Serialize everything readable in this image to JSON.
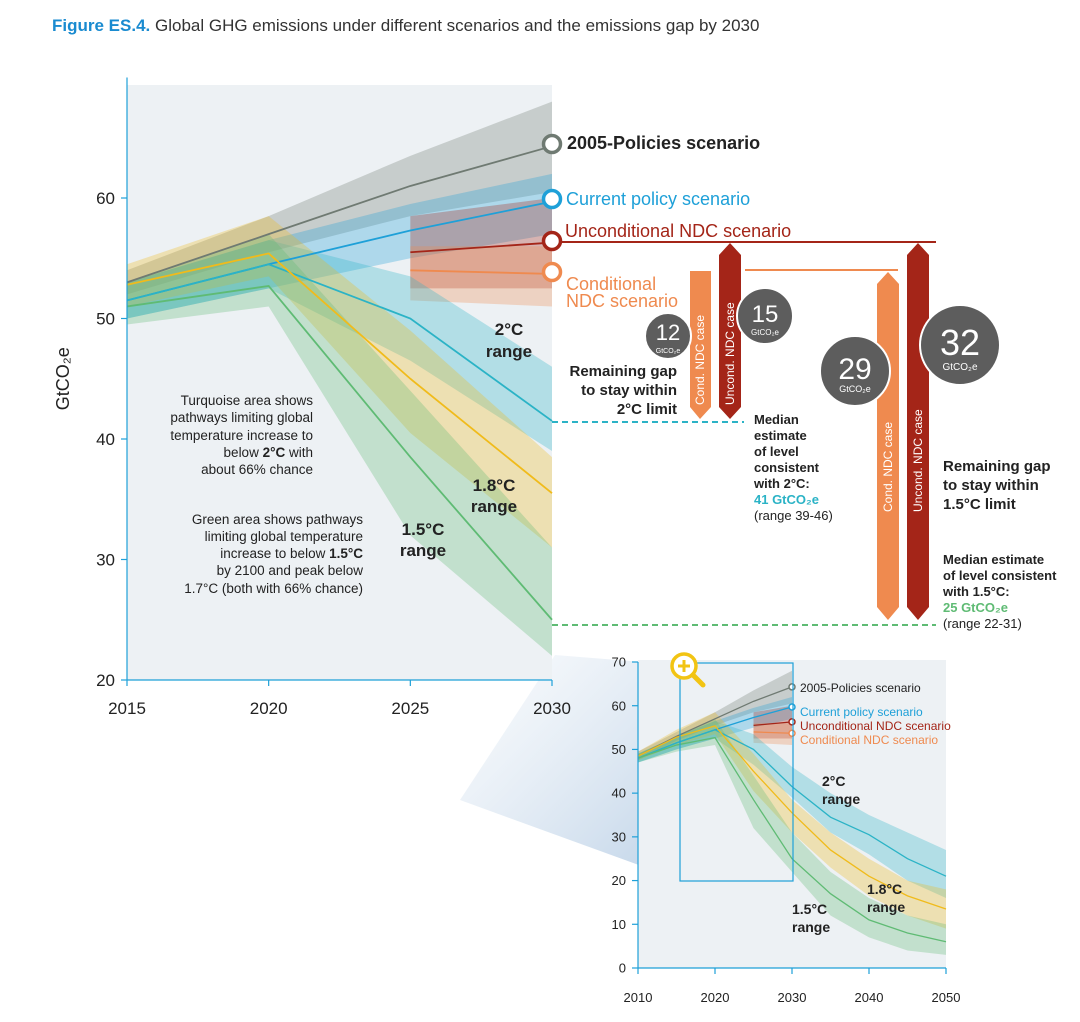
{
  "caption": {
    "label": "Figure ES.4.",
    "text": "Global GHG emissions under different scenarios and the emissions gap by 2030"
  },
  "colors": {
    "policies2005": "#6f7a72",
    "current": "#1ea0d8",
    "uncond": "#a42518",
    "cond": "#ef8a4f",
    "c2": "#2bb3c6",
    "c18": "#f0bb1b",
    "c15": "#5fbb74",
    "zoom": "#f2c413",
    "panel_bg": "#edf1f4"
  },
  "chart_data": [
    {
      "type": "line",
      "title": "",
      "ylabel": "GtCO₂e",
      "xlim": [
        2015,
        2030
      ],
      "ylim": [
        20,
        70
      ],
      "x_ticks": [
        "2015",
        "2020",
        "2025",
        "2030"
      ],
      "y_ticks": [
        "20",
        "30",
        "40",
        "50",
        "60"
      ],
      "series": [
        {
          "name": "2005-Policies scenario",
          "key": "policies2005",
          "x": [
            2015,
            2020,
            2025,
            2030
          ],
          "values": [
            53,
            57,
            61,
            64.3
          ],
          "band_upper": [
            54,
            58.5,
            63.5,
            68
          ],
          "band_lower": [
            52,
            55.5,
            58.5,
            60.5
          ]
        },
        {
          "name": "Current policy scenario",
          "key": "current",
          "x": [
            2015,
            2020,
            2025,
            2030
          ],
          "values": [
            51.5,
            54.5,
            57.3,
            59.7
          ],
          "band_upper": [
            53,
            56.5,
            59.5,
            62
          ],
          "band_lower": [
            50,
            52.5,
            55,
            57
          ]
        },
        {
          "name": "Unconditional NDC scenario",
          "key": "uncond",
          "x": [
            2025,
            2030
          ],
          "values": [
            55.5,
            56.3
          ],
          "band_upper": [
            58.5,
            60
          ],
          "band_lower": [
            52.5,
            52.5
          ]
        },
        {
          "name": "Conditional NDC scenario",
          "key": "cond",
          "x": [
            2025,
            2030
          ],
          "values": [
            54,
            53.7
          ],
          "band_upper": [
            56,
            56
          ],
          "band_lower": [
            51.5,
            51
          ]
        },
        {
          "name": "2°C range",
          "key": "c2",
          "x": [
            2015,
            2020,
            2025,
            2030
          ],
          "values": [
            51.5,
            54.5,
            50,
            41.5
          ],
          "band_upper": [
            53,
            56.5,
            53.5,
            46
          ],
          "band_lower": [
            50,
            52.5,
            46.5,
            39
          ]
        },
        {
          "name": "1.8°C range",
          "key": "c18",
          "x": [
            2015,
            2020,
            2025,
            2030
          ],
          "values": [
            52.8,
            55.4,
            45,
            35.5
          ],
          "band_upper": [
            54.5,
            58.5,
            49,
            38.5
          ],
          "band_lower": [
            51,
            53.5,
            40.5,
            31
          ]
        },
        {
          "name": "1.5°C range",
          "key": "c15",
          "x": [
            2015,
            2020,
            2025,
            2030
          ],
          "values": [
            51,
            52.7,
            38.5,
            25
          ],
          "band_upper": [
            53,
            57,
            44,
            31
          ],
          "band_lower": [
            49.5,
            51,
            32,
            22
          ]
        }
      ],
      "median_2c": 41,
      "median_15c": 25,
      "gaps": [
        {
          "case": "Cond. NDC case",
          "target": "2°C",
          "value": "12",
          "unit": "GtCO₂e"
        },
        {
          "case": "Uncond. NDC case",
          "target": "2°C",
          "value": "15",
          "unit": "GtCO₂e"
        },
        {
          "case": "Cond. NDC case",
          "target": "1.5°C",
          "value": "29",
          "unit": "GtCO₂e"
        },
        {
          "case": "Uncond. NDC case",
          "target": "1.5°C",
          "value": "32",
          "unit": "GtCO₂e"
        }
      ]
    },
    {
      "type": "line",
      "title": "",
      "xlim": [
        2010,
        2050
      ],
      "ylim": [
        0,
        70
      ],
      "x_ticks": [
        "2010",
        "2020",
        "2030",
        "2040",
        "2050"
      ],
      "y_ticks": [
        "0",
        "10",
        "20",
        "30",
        "40",
        "50",
        "60",
        "70"
      ],
      "zoom_region": {
        "x": [
          2015,
          2030
        ],
        "y": [
          20,
          70
        ]
      },
      "series": [
        {
          "name": "2005-Policies scenario",
          "key": "policies2005",
          "x": [
            2010,
            2015,
            2020,
            2025,
            2030
          ],
          "values": [
            48.5,
            53,
            57,
            61,
            64.3
          ],
          "band_upper": [
            49.5,
            54,
            58.5,
            63.5,
            68
          ],
          "band_lower": [
            47.5,
            52,
            55.5,
            58.5,
            60.5
          ]
        },
        {
          "name": "Current policy scenario",
          "key": "current",
          "x": [
            2010,
            2015,
            2020,
            2025,
            2030
          ],
          "values": [
            48,
            51.5,
            54.5,
            57.3,
            59.7
          ],
          "band_upper": [
            49,
            53,
            56.5,
            59.5,
            62
          ],
          "band_lower": [
            47,
            50,
            52.5,
            55,
            57
          ]
        },
        {
          "name": "Unconditional NDC scenario",
          "key": "uncond",
          "x": [
            2025,
            2030
          ],
          "values": [
            55.5,
            56.3
          ],
          "band_upper": [
            58.5,
            60
          ],
          "band_lower": [
            52.5,
            52.5
          ]
        },
        {
          "name": "Conditional NDC scenario",
          "key": "cond",
          "x": [
            2025,
            2030
          ],
          "values": [
            54,
            53.7
          ],
          "band_upper": [
            56,
            56
          ],
          "band_lower": [
            51.5,
            51
          ]
        },
        {
          "name": "2°C range",
          "key": "c2",
          "x": [
            2010,
            2015,
            2020,
            2025,
            2030,
            2035,
            2040,
            2045,
            2050
          ],
          "values": [
            48,
            51.5,
            54.5,
            50,
            41.5,
            34.5,
            30.5,
            25,
            21
          ],
          "band_upper": [
            49,
            53,
            56.5,
            53.5,
            46,
            40,
            35,
            31,
            27
          ],
          "band_lower": [
            47,
            50,
            52.5,
            46.5,
            39,
            31,
            26,
            20,
            16
          ]
        },
        {
          "name": "1.8°C range",
          "key": "c18",
          "x": [
            2010,
            2015,
            2020,
            2025,
            2030,
            2035,
            2040,
            2045,
            2050
          ],
          "values": [
            48.5,
            52.8,
            55.4,
            45,
            35.5,
            27,
            21,
            16.5,
            13.5
          ],
          "band_upper": [
            49.5,
            54.5,
            58.5,
            49,
            38.5,
            31,
            25,
            20,
            18
          ],
          "band_lower": [
            47.5,
            51,
            53.5,
            40.5,
            31,
            23,
            16.5,
            12,
            9
          ]
        },
        {
          "name": "1.5°C range",
          "key": "c15",
          "x": [
            2010,
            2015,
            2020,
            2025,
            2030,
            2035,
            2040,
            2045,
            2050
          ],
          "values": [
            48,
            51,
            52.7,
            38.5,
            25,
            17,
            11,
            8,
            6
          ],
          "band_upper": [
            49,
            53,
            57,
            44,
            31,
            22,
            16,
            12,
            10
          ],
          "band_lower": [
            47,
            49.5,
            51,
            32,
            22,
            12,
            7,
            4,
            3
          ]
        }
      ]
    }
  ],
  "labels": {
    "policies2005": "2005-Policies scenario",
    "current": "Current policy scenario",
    "uncond": "Unconditional NDC scenario",
    "cond_l1": "Conditional",
    "cond_l2": "NDC scenario",
    "c2_l1": "2°C",
    "c2_l2": "range",
    "c18_l1": "1.8°C",
    "c18_l2": "range",
    "c15_l1": "1.5°C",
    "c15_l2": "range",
    "cond_case": "Cond. NDC case",
    "uncond_case": "Uncond. NDC case",
    "gap12": "12",
    "gap15": "15",
    "gap29": "29",
    "gap32": "32",
    "unit": "GtCO₂e",
    "gap2_l1": "Remaining gap",
    "gap2_l2": "to stay within",
    "gap2_l3": "2°C limit",
    "gap15_l1": "Remaining gap",
    "gap15_l2": "to stay within",
    "gap15_l3": "1.5°C limit",
    "med2_l1": "Median",
    "med2_l2": "estimate",
    "med2_l3": "of level",
    "med2_l4": "consistent",
    "med2_l5": "with 2°C:",
    "med2_val": "41 GtCO₂e",
    "med2_range": "(range 39-46)",
    "med15_l1": "Median estimate",
    "med15_l2": "of level consistent",
    "med15_l3": "with 1.5°C:",
    "med15_val": "25 GtCO₂e",
    "med15_range": "(range 22-31)",
    "turq_l1": "Turquoise area shows",
    "turq_l2": "pathways limiting global",
    "turq_l3": "temperature increase to",
    "turq_l4a": "below ",
    "turq_l4b": "2°C",
    "turq_l4c": " with",
    "turq_l5": "about 66% chance",
    "green_l1": "Green area shows pathways",
    "green_l2": "limiting global temperature",
    "green_l3a": "increase to below ",
    "green_l3b": "1.5°C",
    "green_l4": "by 2100 and peak below",
    "green_l5": "1.7°C (both with 66% chance)",
    "zoom_icon": "magnifier-plus-icon"
  }
}
